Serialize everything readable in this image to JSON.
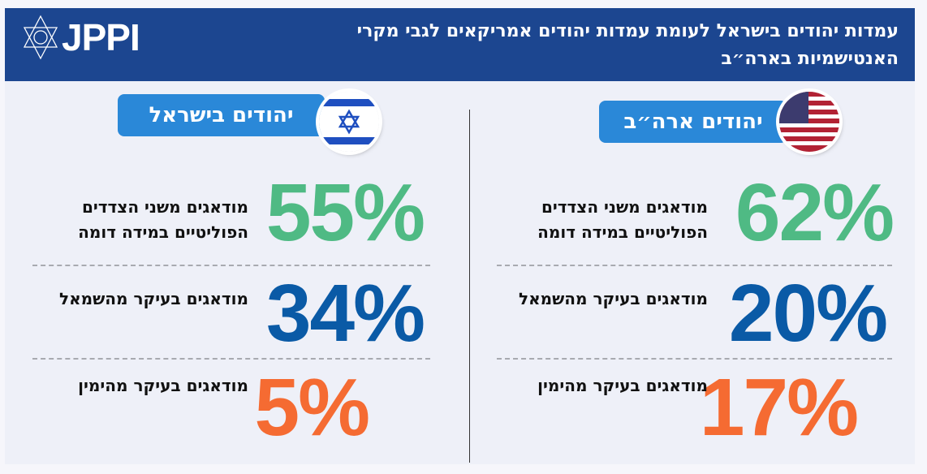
{
  "header": {
    "title": "עמדות יהודים בישראל לעומת עמדות יהודים אמריקאים לגבי מקרי האנטישמיות בארה״ב",
    "logo_text": "JPPI"
  },
  "colors": {
    "header": "#1c4690",
    "pill": "#2a88d8",
    "green": "#4fba84",
    "blue": "#0a5aa6",
    "orange": "#f56b32"
  },
  "usa": {
    "label": "יהודים ארה״ב",
    "stats": [
      {
        "value": "62%",
        "label": "מודאגים משני הצדדים הפוליטיים במידה דומה"
      },
      {
        "value": "20%",
        "label": "מודאגים בעיקר מהשמאל"
      },
      {
        "value": "17%",
        "label": "מודאגים בעיקר מהימין"
      }
    ]
  },
  "israel": {
    "label": "יהודים בישראל",
    "stats": [
      {
        "value": "55%",
        "label": "מודאגים משני הצדדים הפוליטיים במידה דומה"
      },
      {
        "value": "34%",
        "label": "מודאגים בעיקר מהשמאל"
      },
      {
        "value": "5%",
        "label": "מודאגים בעיקר מהימין"
      }
    ]
  }
}
